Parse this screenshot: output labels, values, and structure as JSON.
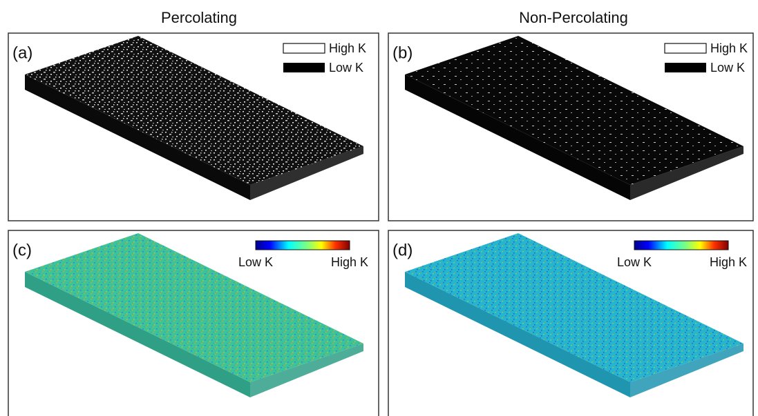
{
  "column_titles": [
    "Percolating",
    "Non-Percolating"
  ],
  "panels": [
    {
      "label": "(a)",
      "legend": [
        "High K",
        "Low K"
      ]
    },
    {
      "label": "(b)",
      "legend": [
        "High K",
        "Low K"
      ]
    },
    {
      "label": "(c)",
      "legend": [
        "Low K",
        "High K"
      ]
    },
    {
      "label": "(d)",
      "legend": [
        "Low K",
        "High K"
      ]
    }
  ]
}
